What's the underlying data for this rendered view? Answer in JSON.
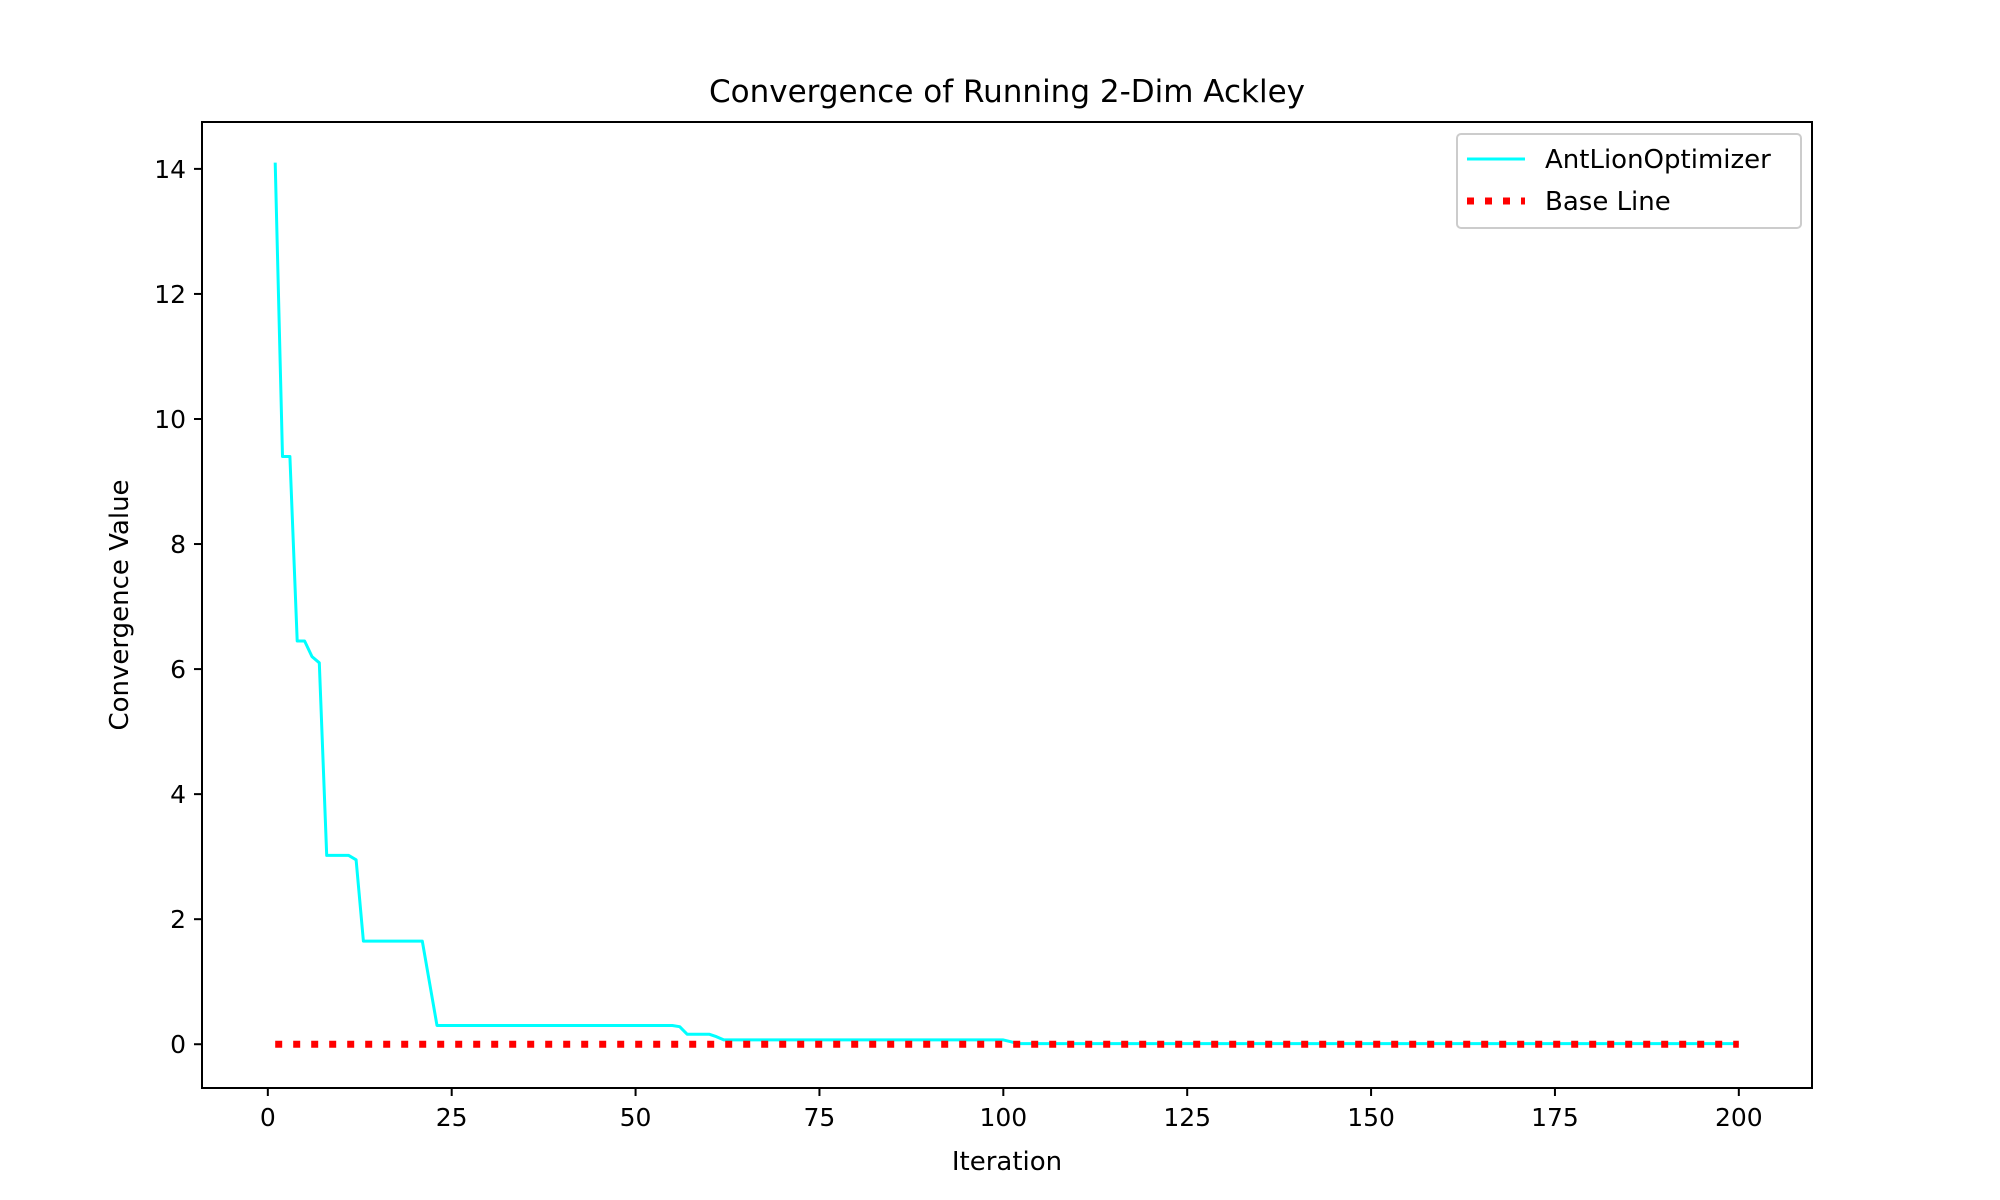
{
  "chart_data": {
    "type": "line",
    "title": "Convergence of Running 2-Dim Ackley",
    "xlabel": "Iteration",
    "ylabel": "Convergence Value",
    "xlim": [
      -8.95,
      209.95
    ],
    "ylim": [
      -0.7,
      14.75
    ],
    "xticks": [
      0,
      25,
      50,
      75,
      100,
      125,
      150,
      175,
      200
    ],
    "yticks": [
      0,
      2,
      4,
      6,
      8,
      10,
      12,
      14
    ],
    "grid": false,
    "legend_position": "top-right",
    "series": [
      {
        "name": "AntLionOptimizer",
        "color": "#00ffff",
        "line_style": "solid",
        "x": [
          1,
          2,
          3,
          4,
          5,
          6,
          7,
          8,
          9,
          10,
          11,
          12,
          13,
          14,
          15,
          16,
          17,
          18,
          19,
          20,
          21,
          23,
          25,
          30,
          35,
          40,
          45,
          50,
          55,
          56,
          57,
          58,
          59,
          60,
          61,
          62,
          65,
          70,
          80,
          90,
          100,
          101,
          102,
          110,
          150,
          200
        ],
        "y": [
          14.1,
          9.4,
          9.4,
          6.45,
          6.45,
          6.2,
          6.1,
          3.02,
          3.02,
          3.02,
          3.02,
          2.95,
          1.65,
          1.65,
          1.65,
          1.65,
          1.65,
          1.65,
          1.65,
          1.65,
          1.65,
          0.3,
          0.3,
          0.3,
          0.3,
          0.3,
          0.3,
          0.3,
          0.3,
          0.28,
          0.16,
          0.16,
          0.16,
          0.16,
          0.12,
          0.07,
          0.07,
          0.07,
          0.07,
          0.07,
          0.07,
          0.04,
          0.01,
          0.01,
          0.01,
          0.01
        ]
      },
      {
        "name": "Base Line",
        "color": "#ff0000",
        "line_style": "dotted",
        "x": [
          1,
          200
        ],
        "y": [
          0,
          0
        ]
      }
    ]
  }
}
